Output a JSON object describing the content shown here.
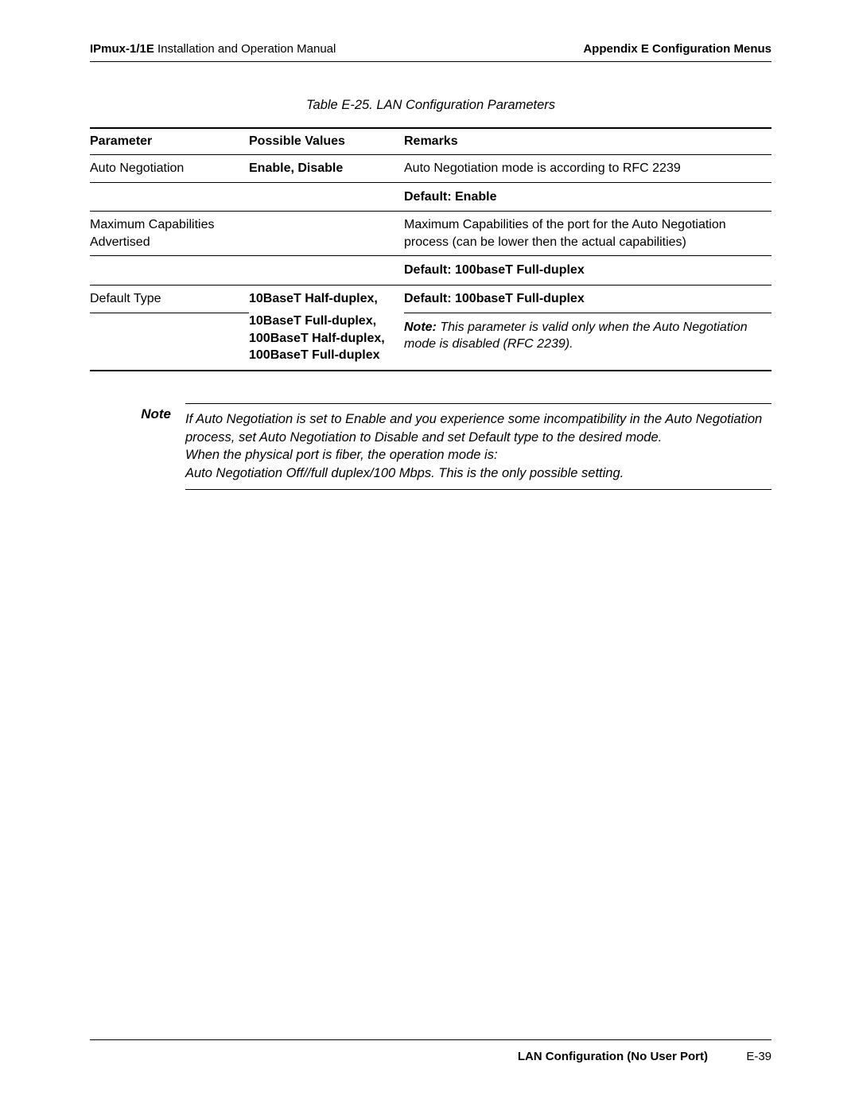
{
  "header": {
    "left_prefix": "IPmux-1/1E",
    "left_suffix": " Installation and Operation Manual",
    "right": "Appendix E  Configuration Menus"
  },
  "table": {
    "caption": "Table E-25.  LAN Configuration Parameters",
    "columns": {
      "param": "Parameter",
      "values": "Possible Values",
      "remarks": "Remarks"
    },
    "rows": {
      "r1": {
        "param": "Auto Negotiation",
        "values": "Enable, Disable",
        "remarks": "Auto Negotiation mode is according to RFC 2239",
        "default": "Default: Enable"
      },
      "r2": {
        "param": "Maximum Capabilities Advertised",
        "values": "",
        "remarks": "Maximum Capabilities of the port for the Auto Negotiation process (can be lower then the actual capabilities)",
        "default": "Default: 100baseT Full-duplex"
      },
      "r3": {
        "param": "Default Type",
        "values_line1": "10BaseT Half-duplex,",
        "values_line2": "10BaseT Full-duplex,",
        "values_line3": "100BaseT Half-duplex,",
        "values_line4": "100BaseT Full-duplex",
        "default": "Default: 100baseT Full-duplex",
        "note_label": "Note:",
        "note_text": " This parameter is valid only when the Auto Negotiation mode is disabled (RFC 2239)."
      }
    }
  },
  "note": {
    "label": "Note",
    "text1": "If Auto Negotiation is set to Enable and you experience some incompatibility in the Auto Negotiation process, set Auto Negotiation to Disable and set Default type to the desired mode.",
    "text2": "When the physical port is fiber, the operation mode is:",
    "text3": " Auto Negotiation Off//full duplex/100 Mbps. This is the only possible setting."
  },
  "footer": {
    "section": "LAN Configuration (No User Port)",
    "page": "E-39"
  }
}
